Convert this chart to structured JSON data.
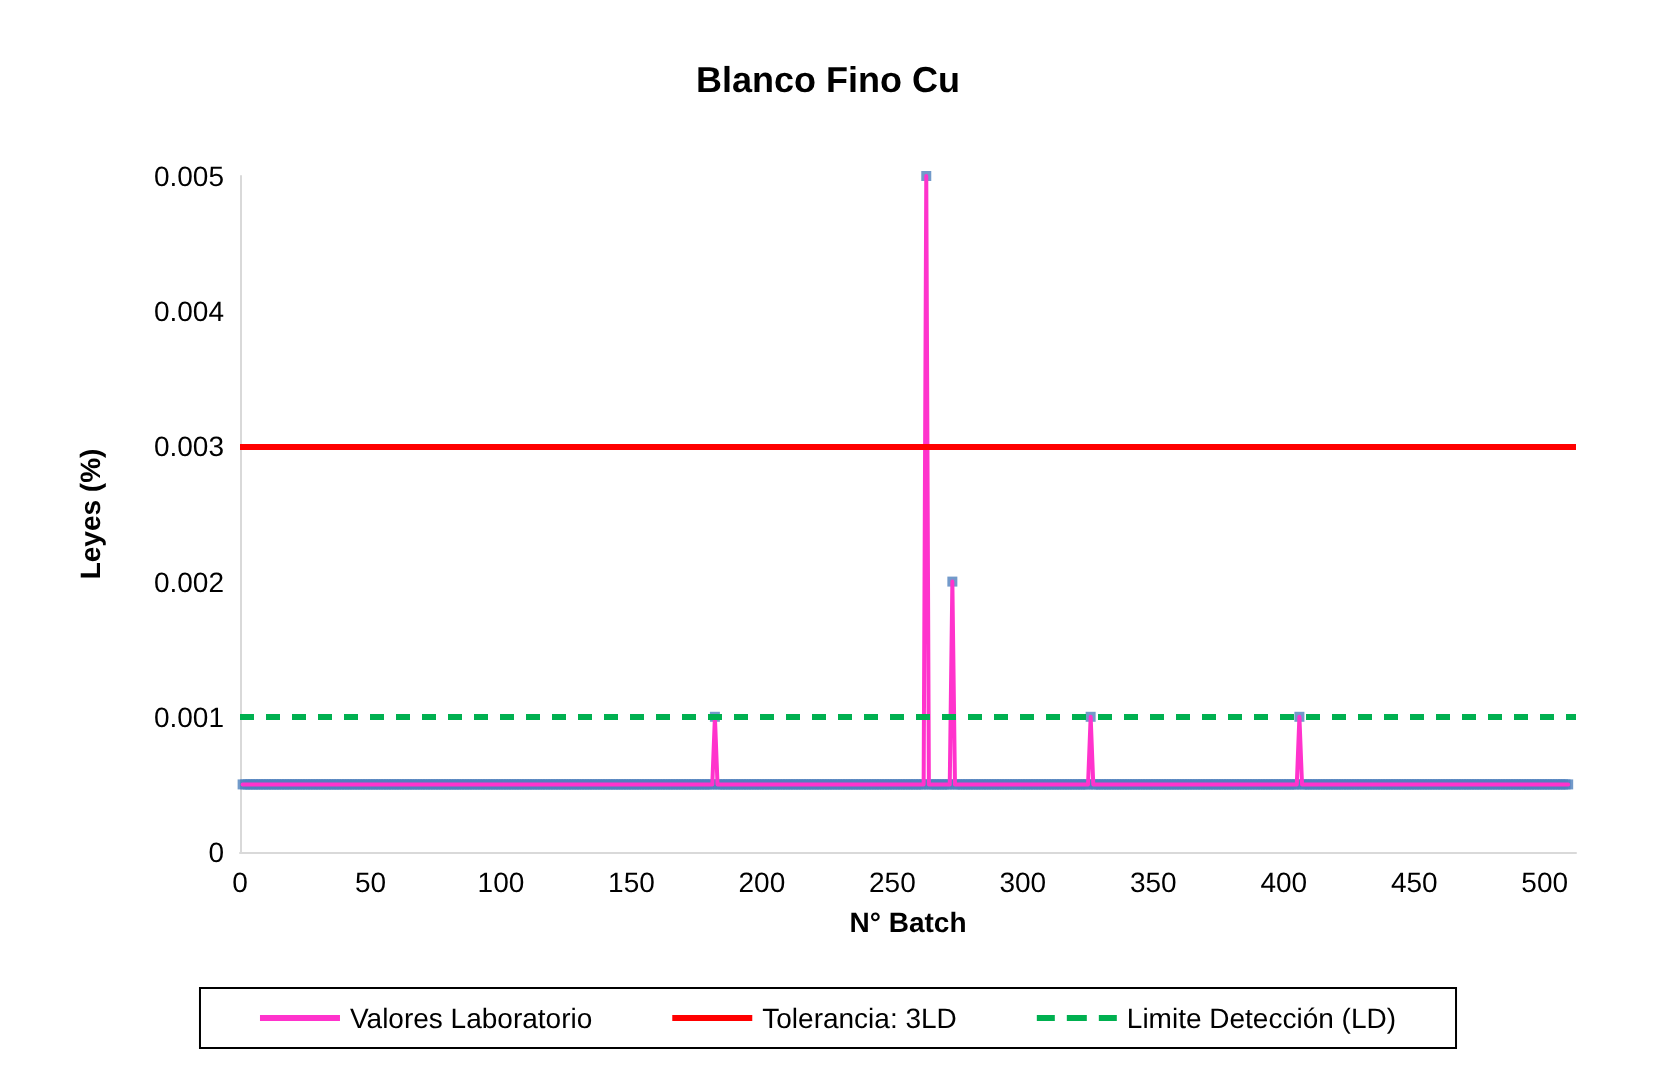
{
  "chart_data": {
    "type": "line",
    "title": "Blanco Fino Cu",
    "xlabel": "N° Batch",
    "ylabel": "Leyes (%)",
    "xlim": [
      0,
      512
    ],
    "xticks": [
      0,
      50,
      100,
      150,
      200,
      250,
      300,
      350,
      400,
      450,
      500
    ],
    "ylim": [
      0,
      0.005
    ],
    "yticks": [
      0,
      0.001,
      0.002,
      0.003,
      0.004,
      0.005
    ],
    "legend": "bottom",
    "ref_lines": [
      {
        "axis": "y",
        "value": 0.003,
        "label": "Tolerancia: 3LD",
        "color": "#ff0000",
        "line_style": "solid"
      },
      {
        "axis": "y",
        "value": 0.001,
        "label": "Limite Detección (LD)",
        "color": "#00b050",
        "line_style": "dashed"
      }
    ],
    "x": [
      1,
      2,
      3,
      4,
      5,
      6,
      7,
      8,
      9,
      10,
      11,
      12,
      13,
      14,
      15,
      16,
      17,
      18,
      19,
      20,
      21,
      22,
      23,
      24,
      25,
      26,
      27,
      28,
      29,
      30,
      31,
      32,
      33,
      34,
      35,
      36,
      37,
      38,
      39,
      40,
      41,
      42,
      43,
      44,
      45,
      46,
      47,
      48,
      49,
      50,
      51,
      52,
      53,
      54,
      55,
      56,
      57,
      58,
      59,
      60,
      61,
      62,
      63,
      64,
      65,
      66,
      67,
      68,
      69,
      70,
      71,
      72,
      73,
      74,
      75,
      76,
      77,
      78,
      79,
      80,
      81,
      82,
      83,
      84,
      85,
      86,
      87,
      88,
      89,
      90,
      91,
      92,
      93,
      94,
      95,
      96,
      97,
      98,
      99,
      100,
      101,
      102,
      103,
      104,
      105,
      106,
      107,
      108,
      109,
      110,
      111,
      112,
      113,
      114,
      115,
      116,
      117,
      118,
      119,
      120,
      121,
      122,
      123,
      124,
      125,
      126,
      127,
      128,
      129,
      130,
      131,
      132,
      133,
      134,
      135,
      136,
      137,
      138,
      139,
      140,
      141,
      142,
      143,
      144,
      145,
      146,
      147,
      148,
      149,
      150,
      151,
      152,
      153,
      154,
      155,
      156,
      157,
      158,
      159,
      160,
      161,
      162,
      163,
      164,
      165,
      166,
      167,
      168,
      169,
      170,
      171,
      172,
      173,
      174,
      175,
      176,
      177,
      178,
      179,
      180,
      181,
      182,
      183,
      184,
      185,
      186,
      187,
      188,
      189,
      190,
      191,
      192,
      193,
      194,
      195,
      196,
      197,
      198,
      199,
      200,
      201,
      202,
      203,
      204,
      205,
      206,
      207,
      208,
      209,
      210,
      211,
      212,
      213,
      214,
      215,
      216,
      217,
      218,
      219,
      220,
      221,
      222,
      223,
      224,
      225,
      226,
      227,
      228,
      229,
      230,
      231,
      232,
      233,
      234,
      235,
      236,
      237,
      238,
      239,
      240,
      241,
      242,
      243,
      244,
      245,
      246,
      247,
      248,
      249,
      250,
      251,
      252,
      253,
      254,
      255,
      256,
      257,
      258,
      259,
      260,
      261,
      262,
      263,
      264,
      265,
      266,
      267,
      268,
      269,
      270,
      271,
      272,
      273,
      274,
      275,
      276,
      277,
      278,
      279,
      280,
      281,
      282,
      283,
      284,
      285,
      286,
      287,
      288,
      289,
      290,
      291,
      292,
      293,
      294,
      295,
      296,
      297,
      298,
      299,
      300,
      301,
      302,
      303,
      304,
      305,
      306,
      307,
      308,
      309,
      310,
      311,
      312,
      313,
      314,
      315,
      316,
      317,
      318,
      319,
      320,
      321,
      322,
      323,
      324,
      325,
      326,
      327,
      328,
      329,
      330,
      331,
      332,
      333,
      334,
      335,
      336,
      337,
      338,
      339,
      340,
      341,
      342,
      343,
      344,
      345,
      346,
      347,
      348,
      349,
      350,
      351,
      352,
      353,
      354,
      355,
      356,
      357,
      358,
      359,
      360,
      361,
      362,
      363,
      364,
      365,
      366,
      367,
      368,
      369,
      370,
      371,
      372,
      373,
      374,
      375,
      376,
      377,
      378,
      379,
      380,
      381,
      382,
      383,
      384,
      385,
      386,
      387,
      388,
      389,
      390,
      391,
      392,
      393,
      394,
      395,
      396,
      397,
      398,
      399,
      400,
      401,
      402,
      403,
      404,
      405,
      406,
      407,
      408,
      409,
      410,
      411,
      412,
      413,
      414,
      415,
      416,
      417,
      418,
      419,
      420,
      421,
      422,
      423,
      424,
      425,
      426,
      427,
      428,
      429,
      430,
      431,
      432,
      433,
      434,
      435,
      436,
      437,
      438,
      439,
      440,
      441,
      442,
      443,
      444,
      445,
      446,
      447,
      448,
      449,
      450,
      451,
      452,
      453,
      454,
      455,
      456,
      457,
      458,
      459,
      460,
      461,
      462,
      463,
      464,
      465,
      466,
      467,
      468,
      469,
      470,
      471,
      472,
      473,
      474,
      475,
      476,
      477,
      478,
      479,
      480,
      481,
      482,
      483,
      484,
      485,
      486,
      487,
      488,
      489,
      490,
      491,
      492,
      493,
      494,
      495,
      496,
      497,
      498,
      499,
      500,
      501,
      502,
      503,
      504,
      505,
      506,
      507,
      508,
      509
    ],
    "series": [
      {
        "name": "Valores Laboratorio",
        "color": "#ff33cc",
        "marker": "none",
        "line_style": "solid",
        "values": [
          0.0005,
          0.0005,
          0.0005,
          0.0005,
          0.0005,
          0.0005,
          0.0005,
          0.0005,
          0.0005,
          0.0005,
          0.0005,
          0.0005,
          0.0005,
          0.0005,
          0.0005,
          0.0005,
          0.0005,
          0.0005,
          0.0005,
          0.0005,
          0.0005,
          0.0005,
          0.0005,
          0.0005,
          0.0005,
          0.0005,
          0.0005,
          0.0005,
          0.0005,
          0.0005,
          0.0005,
          0.0005,
          0.0005,
          0.0005,
          0.0005,
          0.0005,
          0.0005,
          0.0005,
          0.0005,
          0.0005,
          0.0005,
          0.0005,
          0.0005,
          0.0005,
          0.0005,
          0.0005,
          0.0005,
          0.0005,
          0.0005,
          0.0005,
          0.0005,
          0.0005,
          0.0005,
          0.0005,
          0.0005,
          0.0005,
          0.0005,
          0.0005,
          0.0005,
          0.0005,
          0.0005,
          0.0005,
          0.0005,
          0.0005,
          0.0005,
          0.0005,
          0.0005,
          0.0005,
          0.0005,
          0.0005,
          0.0005,
          0.0005,
          0.0005,
          0.0005,
          0.0005,
          0.0005,
          0.0005,
          0.0005,
          0.0005,
          0.0005,
          0.0005,
          0.0005,
          0.0005,
          0.0005,
          0.0005,
          0.0005,
          0.0005,
          0.0005,
          0.0005,
          0.0005,
          0.0005,
          0.0005,
          0.0005,
          0.0005,
          0.0005,
          0.0005,
          0.0005,
          0.0005,
          0.0005,
          0.0005,
          0.0005,
          0.0005,
          0.0005,
          0.0005,
          0.0005,
          0.0005,
          0.0005,
          0.0005,
          0.0005,
          0.0005,
          0.0005,
          0.0005,
          0.0005,
          0.0005,
          0.0005,
          0.0005,
          0.0005,
          0.0005,
          0.0005,
          0.0005,
          0.0005,
          0.0005,
          0.0005,
          0.0005,
          0.0005,
          0.0005,
          0.0005,
          0.0005,
          0.0005,
          0.0005,
          0.0005,
          0.0005,
          0.0005,
          0.0005,
          0.0005,
          0.0005,
          0.0005,
          0.0005,
          0.0005,
          0.0005,
          0.0005,
          0.0005,
          0.0005,
          0.0005,
          0.0005,
          0.0005,
          0.0005,
          0.0005,
          0.0005,
          0.0005,
          0.0005,
          0.0005,
          0.0005,
          0.0005,
          0.0005,
          0.0005,
          0.0005,
          0.0005,
          0.0005,
          0.0005,
          0.0005,
          0.0005,
          0.0005,
          0.0005,
          0.0005,
          0.0005,
          0.0005,
          0.0005,
          0.0005,
          0.0005,
          0.0005,
          0.0005,
          0.0005,
          0.0005,
          0.0005,
          0.0005,
          0.0005,
          0.0005,
          0.0005,
          0.0005,
          0.0005,
          0.001,
          0.0005,
          0.0005,
          0.0005,
          0.0005,
          0.0005,
          0.0005,
          0.0005,
          0.0005,
          0.0005,
          0.0005,
          0.0005,
          0.0005,
          0.0005,
          0.0005,
          0.0005,
          0.0005,
          0.0005,
          0.0005,
          0.0005,
          0.0005,
          0.0005,
          0.0005,
          0.0005,
          0.0005,
          0.0005,
          0.0005,
          0.0005,
          0.0005,
          0.0005,
          0.0005,
          0.0005,
          0.0005,
          0.0005,
          0.0005,
          0.0005,
          0.0005,
          0.0005,
          0.0005,
          0.0005,
          0.0005,
          0.0005,
          0.0005,
          0.0005,
          0.0005,
          0.0005,
          0.0005,
          0.0005,
          0.0005,
          0.0005,
          0.0005,
          0.0005,
          0.0005,
          0.0005,
          0.0005,
          0.0005,
          0.0005,
          0.0005,
          0.0005,
          0.0005,
          0.0005,
          0.0005,
          0.0005,
          0.0005,
          0.0005,
          0.0005,
          0.0005,
          0.0005,
          0.0005,
          0.0005,
          0.0005,
          0.0005,
          0.0005,
          0.0005,
          0.0005,
          0.0005,
          0.0005,
          0.0005,
          0.0005,
          0.0005,
          0.0005,
          0.005,
          0.0005,
          0.0005,
          0.0005,
          0.0005,
          0.0005,
          0.0005,
          0.0005,
          0.0005,
          0.0005,
          0.002,
          0.0005,
          0.0005,
          0.0005,
          0.0005,
          0.0005,
          0.0005,
          0.0005,
          0.0005,
          0.0005,
          0.0005,
          0.0005,
          0.0005,
          0.0005,
          0.0005,
          0.0005,
          0.0005,
          0.0005,
          0.0005,
          0.0005,
          0.0005,
          0.0005,
          0.0005,
          0.0005,
          0.0005,
          0.0005,
          0.0005,
          0.0005,
          0.0005,
          0.0005,
          0.0005,
          0.0005,
          0.0005,
          0.0005,
          0.0005,
          0.0005,
          0.0005,
          0.0005,
          0.0005,
          0.0005,
          0.0005,
          0.0005,
          0.0005,
          0.0005,
          0.0005,
          0.0005,
          0.0005,
          0.0005,
          0.0005,
          0.0005,
          0.0005,
          0.0005,
          0.0005,
          0.001,
          0.0005,
          0.0005,
          0.0005,
          0.0005,
          0.0005,
          0.0005,
          0.0005,
          0.0005,
          0.0005,
          0.0005,
          0.0005,
          0.0005,
          0.0005,
          0.0005,
          0.0005,
          0.0005,
          0.0005,
          0.0005,
          0.0005,
          0.0005,
          0.0005,
          0.0005,
          0.0005,
          0.0005,
          0.0005,
          0.0005,
          0.0005,
          0.0005,
          0.0005,
          0.0005,
          0.0005,
          0.0005,
          0.0005,
          0.0005,
          0.0005,
          0.0005,
          0.0005,
          0.0005,
          0.0005,
          0.0005,
          0.0005,
          0.0005,
          0.0005,
          0.0005,
          0.0005,
          0.0005,
          0.0005,
          0.0005,
          0.0005,
          0.0005,
          0.0005,
          0.0005,
          0.0005,
          0.0005,
          0.0005,
          0.0005,
          0.0005,
          0.0005,
          0.0005,
          0.0005,
          0.0005,
          0.0005,
          0.0005,
          0.0005,
          0.0005,
          0.0005,
          0.0005,
          0.0005,
          0.0005,
          0.0005,
          0.0005,
          0.0005,
          0.0005,
          0.0005,
          0.0005,
          0.0005,
          0.0005,
          0.0005,
          0.0005,
          0.001,
          0.0005,
          0.0005,
          0.0005,
          0.0005,
          0.0005,
          0.0005,
          0.0005,
          0.0005,
          0.0005,
          0.0005,
          0.0005,
          0.0005,
          0.0005,
          0.0005,
          0.0005,
          0.0005,
          0.0005,
          0.0005,
          0.0005,
          0.0005,
          0.0005,
          0.0005,
          0.0005,
          0.0005,
          0.0005,
          0.0005,
          0.0005,
          0.0005,
          0.0005,
          0.0005,
          0.0005,
          0.0005,
          0.0005,
          0.0005,
          0.0005,
          0.0005,
          0.0005,
          0.0005,
          0.0005,
          0.0005,
          0.0005,
          0.0005,
          0.0005,
          0.0005,
          0.0005,
          0.0005,
          0.0005,
          0.0005,
          0.0005,
          0.0005,
          0.0005,
          0.0005,
          0.0005,
          0.0005,
          0.0005,
          0.0005,
          0.0005,
          0.0005,
          0.0005,
          0.0005,
          0.0005,
          0.0005,
          0.0005,
          0.0005,
          0.0005,
          0.0005,
          0.0005,
          0.0005,
          0.0005,
          0.0005,
          0.0005,
          0.0005,
          0.0005,
          0.0005,
          0.0005,
          0.0005,
          0.0005,
          0.0005,
          0.0005,
          0.0005,
          0.0005,
          0.0005,
          0.0005,
          0.0005,
          0.0005,
          0.0005,
          0.0005,
          0.0005,
          0.0005,
          0.0005,
          0.0005,
          0.0005,
          0.0005,
          0.0005,
          0.0005,
          0.0005,
          0.0005,
          0.0005,
          0.0005,
          0.0005,
          0.0005,
          0.0005,
          0.0005
        ]
      },
      {
        "type": "scatter",
        "color": "#4f81bd",
        "marker": "square",
        "values": [
          0.0005,
          0.0005,
          0.0005,
          0.0005,
          0.0005,
          0.0005,
          0.0005,
          0.0005,
          0.0005,
          0.0005,
          0.0005,
          0.0005,
          0.0005,
          0.0005,
          0.0005,
          0.0005,
          0.0005,
          0.0005,
          0.0005,
          0.0005,
          0.0005,
          0.0005,
          0.0005,
          0.0005,
          0.0005,
          0.0005,
          0.0005,
          0.0005,
          0.0005,
          0.0005,
          0.0005,
          0.0005,
          0.0005,
          0.0005,
          0.0005,
          0.0005,
          0.0005,
          0.0005,
          0.0005,
          0.0005,
          0.0005,
          0.0005,
          0.0005,
          0.0005,
          0.0005,
          0.0005,
          0.0005,
          0.0005,
          0.0005,
          0.0005,
          0.0005,
          0.0005,
          0.0005,
          0.0005,
          0.0005,
          0.0005,
          0.0005,
          0.0005,
          0.0005,
          0.0005,
          0.0005,
          0.0005,
          0.0005,
          0.0005,
          0.0005,
          0.0005,
          0.0005,
          0.0005,
          0.0005,
          0.0005,
          0.0005,
          0.0005,
          0.0005,
          0.0005,
          0.0005,
          0.0005,
          0.0005,
          0.0005,
          0.0005,
          0.0005,
          0.0005,
          0.0005,
          0.0005,
          0.0005,
          0.0005,
          0.0005,
          0.0005,
          0.0005,
          0.0005,
          0.0005,
          0.0005,
          0.0005,
          0.0005,
          0.0005,
          0.0005,
          0.0005,
          0.0005,
          0.0005,
          0.0005,
          0.0005,
          0.0005,
          0.0005,
          0.0005,
          0.0005,
          0.0005,
          0.0005,
          0.0005,
          0.0005,
          0.0005,
          0.0005,
          0.0005,
          0.0005,
          0.0005,
          0.0005,
          0.0005,
          0.0005,
          0.0005,
          0.0005,
          0.0005,
          0.0005,
          0.0005,
          0.0005,
          0.0005,
          0.0005,
          0.0005,
          0.0005,
          0.0005,
          0.0005,
          0.0005,
          0.0005,
          0.0005,
          0.0005,
          0.0005,
          0.0005,
          0.0005,
          0.0005,
          0.0005,
          0.0005,
          0.0005,
          0.0005,
          0.0005,
          0.0005,
          0.0005,
          0.0005,
          0.0005,
          0.0005,
          0.0005,
          0.0005,
          0.0005,
          0.0005,
          0.0005,
          0.0005,
          0.0005,
          0.0005,
          0.0005,
          0.0005,
          0.0005,
          0.0005,
          0.0005,
          0.0005,
          0.0005,
          0.0005,
          0.0005,
          0.0005,
          0.0005,
          0.0005,
          0.0005,
          0.0005,
          0.0005,
          0.0005,
          0.0005,
          0.0005,
          0.0005,
          0.0005,
          0.0005,
          0.0005,
          0.0005,
          0.0005,
          0.0005,
          0.0005,
          0.0005,
          0.001,
          0.0005,
          0.0005,
          0.0005,
          0.0005,
          0.0005,
          0.0005,
          0.0005,
          0.0005,
          0.0005,
          0.0005,
          0.0005,
          0.0005,
          0.0005,
          0.0005,
          0.0005,
          0.0005,
          0.0005,
          0.0005,
          0.0005,
          0.0005,
          0.0005,
          0.0005,
          0.0005,
          0.0005,
          0.0005,
          0.0005,
          0.0005,
          0.0005,
          0.0005,
          0.0005,
          0.0005,
          0.0005,
          0.0005,
          0.0005,
          0.0005,
          0.0005,
          0.0005,
          0.0005,
          0.0005,
          0.0005,
          0.0005,
          0.0005,
          0.0005,
          0.0005,
          0.0005,
          0.0005,
          0.0005,
          0.0005,
          0.0005,
          0.0005,
          0.0005,
          0.0005,
          0.0005,
          0.0005,
          0.0005,
          0.0005,
          0.0005,
          0.0005,
          0.0005,
          0.0005,
          0.0005,
          0.0005,
          0.0005,
          0.0005,
          0.0005,
          0.0005,
          0.0005,
          0.0005,
          0.0005,
          0.0005,
          0.0005,
          0.0005,
          0.0005,
          0.0005,
          0.0005,
          0.0005,
          0.0005,
          0.0005,
          0.0005,
          0.0005,
          0.005,
          0.0005,
          0.0005,
          0.0005,
          0.0005,
          0.0005,
          0.0005,
          0.0005,
          0.0005,
          0.0005,
          0.002,
          0.0005,
          0.0005,
          0.0005,
          0.0005,
          0.0005,
          0.0005,
          0.0005,
          0.0005,
          0.0005,
          0.0005,
          0.0005,
          0.0005,
          0.0005,
          0.0005,
          0.0005,
          0.0005,
          0.0005,
          0.0005,
          0.0005,
          0.0005,
          0.0005,
          0.0005,
          0.0005,
          0.0005,
          0.0005,
          0.0005,
          0.0005,
          0.0005,
          0.0005,
          0.0005,
          0.0005,
          0.0005,
          0.0005,
          0.0005,
          0.0005,
          0.0005,
          0.0005,
          0.0005,
          0.0005,
          0.0005,
          0.0005,
          0.0005,
          0.0005,
          0.0005,
          0.0005,
          0.0005,
          0.0005,
          0.0005,
          0.0005,
          0.0005,
          0.0005,
          0.0005,
          0.001,
          0.0005,
          0.0005,
          0.0005,
          0.0005,
          0.0005,
          0.0005,
          0.0005,
          0.0005,
          0.0005,
          0.0005,
          0.0005,
          0.0005,
          0.0005,
          0.0005,
          0.0005,
          0.0005,
          0.0005,
          0.0005,
          0.0005,
          0.0005,
          0.0005,
          0.0005,
          0.0005,
          0.0005,
          0.0005,
          0.0005,
          0.0005,
          0.0005,
          0.0005,
          0.0005,
          0.0005,
          0.0005,
          0.0005,
          0.0005,
          0.0005,
          0.0005,
          0.0005,
          0.0005,
          0.0005,
          0.0005,
          0.0005,
          0.0005,
          0.0005,
          0.0005,
          0.0005,
          0.0005,
          0.0005,
          0.0005,
          0.0005,
          0.0005,
          0.0005,
          0.0005,
          0.0005,
          0.0005,
          0.0005,
          0.0005,
          0.0005,
          0.0005,
          0.0005,
          0.0005,
          0.0005,
          0.0005,
          0.0005,
          0.0005,
          0.0005,
          0.0005,
          0.0005,
          0.0005,
          0.0005,
          0.0005,
          0.0005,
          0.0005,
          0.0005,
          0.0005,
          0.0005,
          0.0005,
          0.0005,
          0.0005,
          0.0005,
          0.001,
          0.0005,
          0.0005,
          0.0005,
          0.0005,
          0.0005,
          0.0005,
          0.0005,
          0.0005,
          0.0005,
          0.0005,
          0.0005,
          0.0005,
          0.0005,
          0.0005,
          0.0005,
          0.0005,
          0.0005,
          0.0005,
          0.0005,
          0.0005,
          0.0005,
          0.0005,
          0.0005,
          0.0005,
          0.0005,
          0.0005,
          0.0005,
          0.0005,
          0.0005,
          0.0005,
          0.0005,
          0.0005,
          0.0005,
          0.0005,
          0.0005,
          0.0005,
          0.0005,
          0.0005,
          0.0005,
          0.0005,
          0.0005,
          0.0005,
          0.0005,
          0.0005,
          0.0005,
          0.0005,
          0.0005,
          0.0005,
          0.0005,
          0.0005,
          0.0005,
          0.0005,
          0.0005,
          0.0005,
          0.0005,
          0.0005,
          0.0005,
          0.0005,
          0.0005,
          0.0005,
          0.0005,
          0.0005,
          0.0005,
          0.0005,
          0.0005,
          0.0005,
          0.0005,
          0.0005,
          0.0005,
          0.0005,
          0.0005,
          0.0005,
          0.0005,
          0.0005,
          0.0005,
          0.0005,
          0.0005,
          0.0005,
          0.0005,
          0.0005,
          0.0005,
          0.0005,
          0.0005,
          0.0005,
          0.0005,
          0.0005,
          0.0005,
          0.0005,
          0.0005,
          0.0005,
          0.0005,
          0.0005,
          0.0005,
          0.0005,
          0.0005,
          0.0005,
          0.0005,
          0.0005,
          0.0005,
          0.0005,
          0.0005,
          0.0005,
          0.0005
        ]
      }
    ]
  }
}
